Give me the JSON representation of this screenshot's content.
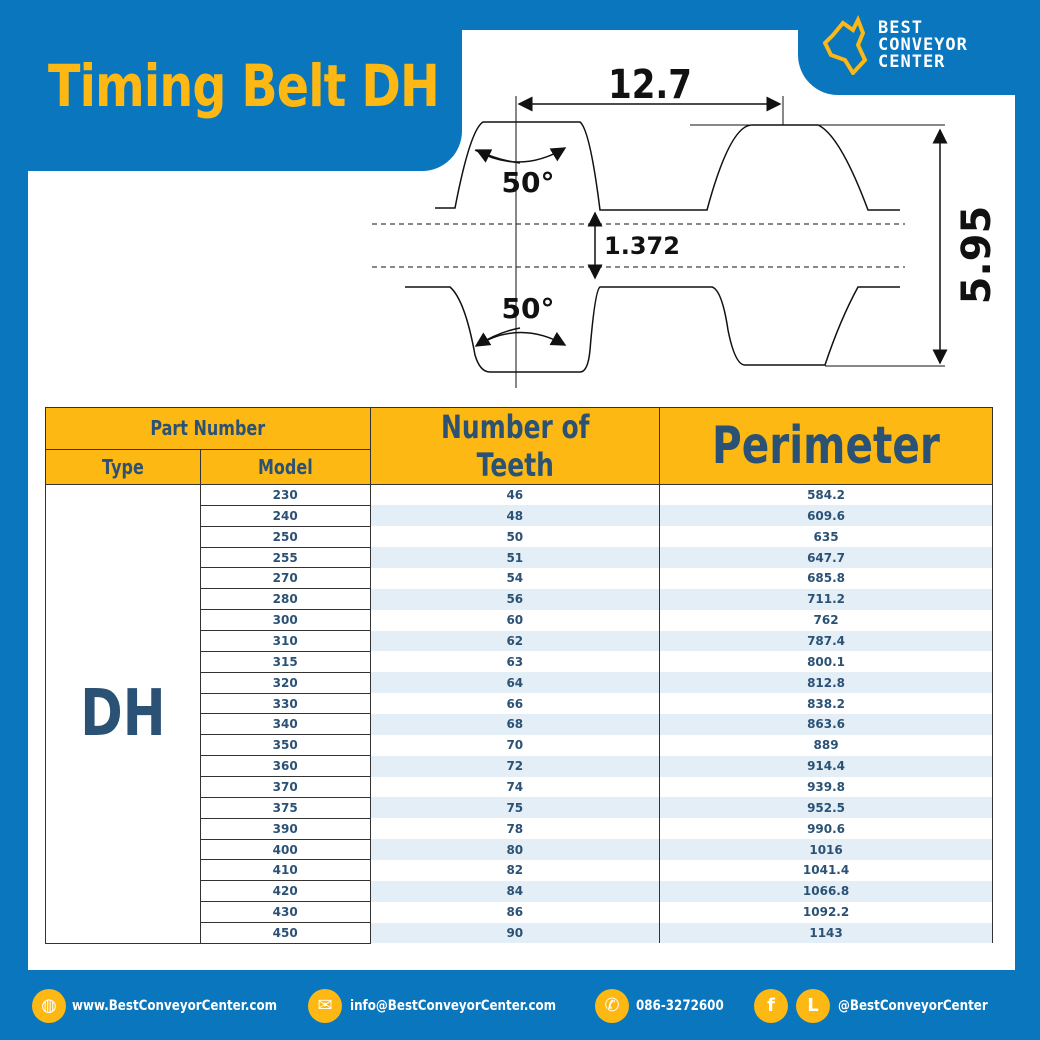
{
  "title": "Timing Belt DH",
  "logo": {
    "line1": "BEST",
    "line2": "CONVEYOR",
    "line3": "CENTER"
  },
  "diagram": {
    "pitch": "12.7",
    "angle_top": "50°",
    "angle_bottom": "50°",
    "thickness_inner": "1.372",
    "total_height": "5.95"
  },
  "table": {
    "header_part_number": "Part Number",
    "header_type": "Type",
    "header_model": "Model",
    "header_teeth": "Number of Teeth",
    "header_perimeter": "Perimeter",
    "type": "DH",
    "rows": [
      {
        "model": "230",
        "teeth": "46",
        "perimeter": "584.2"
      },
      {
        "model": "240",
        "teeth": "48",
        "perimeter": "609.6"
      },
      {
        "model": "250",
        "teeth": "50",
        "perimeter": "635"
      },
      {
        "model": "255",
        "teeth": "51",
        "perimeter": "647.7"
      },
      {
        "model": "270",
        "teeth": "54",
        "perimeter": "685.8"
      },
      {
        "model": "280",
        "teeth": "56",
        "perimeter": "711.2"
      },
      {
        "model": "300",
        "teeth": "60",
        "perimeter": "762"
      },
      {
        "model": "310",
        "teeth": "62",
        "perimeter": "787.4"
      },
      {
        "model": "315",
        "teeth": "63",
        "perimeter": "800.1"
      },
      {
        "model": "320",
        "teeth": "64",
        "perimeter": "812.8"
      },
      {
        "model": "330",
        "teeth": "66",
        "perimeter": "838.2"
      },
      {
        "model": "340",
        "teeth": "68",
        "perimeter": "863.6"
      },
      {
        "model": "350",
        "teeth": "70",
        "perimeter": "889"
      },
      {
        "model": "360",
        "teeth": "72",
        "perimeter": "914.4"
      },
      {
        "model": "370",
        "teeth": "74",
        "perimeter": "939.8"
      },
      {
        "model": "375",
        "teeth": "75",
        "perimeter": "952.5"
      },
      {
        "model": "390",
        "teeth": "78",
        "perimeter": "990.6"
      },
      {
        "model": "400",
        "teeth": "80",
        "perimeter": "1016"
      },
      {
        "model": "410",
        "teeth": "82",
        "perimeter": "1041.4"
      },
      {
        "model": "420",
        "teeth": "84",
        "perimeter": "1066.8"
      },
      {
        "model": "430",
        "teeth": "86",
        "perimeter": "1092.2"
      },
      {
        "model": "450",
        "teeth": "90",
        "perimeter": "1143"
      }
    ]
  },
  "footer": {
    "website": "www.BestConveyorCenter.com",
    "email": "info@BestConveyorCenter.com",
    "phone": "086-3272600",
    "social": "@BestConveyorCenter",
    "facebook_letter": "f",
    "line_letter": "L"
  },
  "colors": {
    "brand_blue": "#0a76bd",
    "accent_yellow": "#fdb813",
    "text_navy": "#2b5275"
  }
}
